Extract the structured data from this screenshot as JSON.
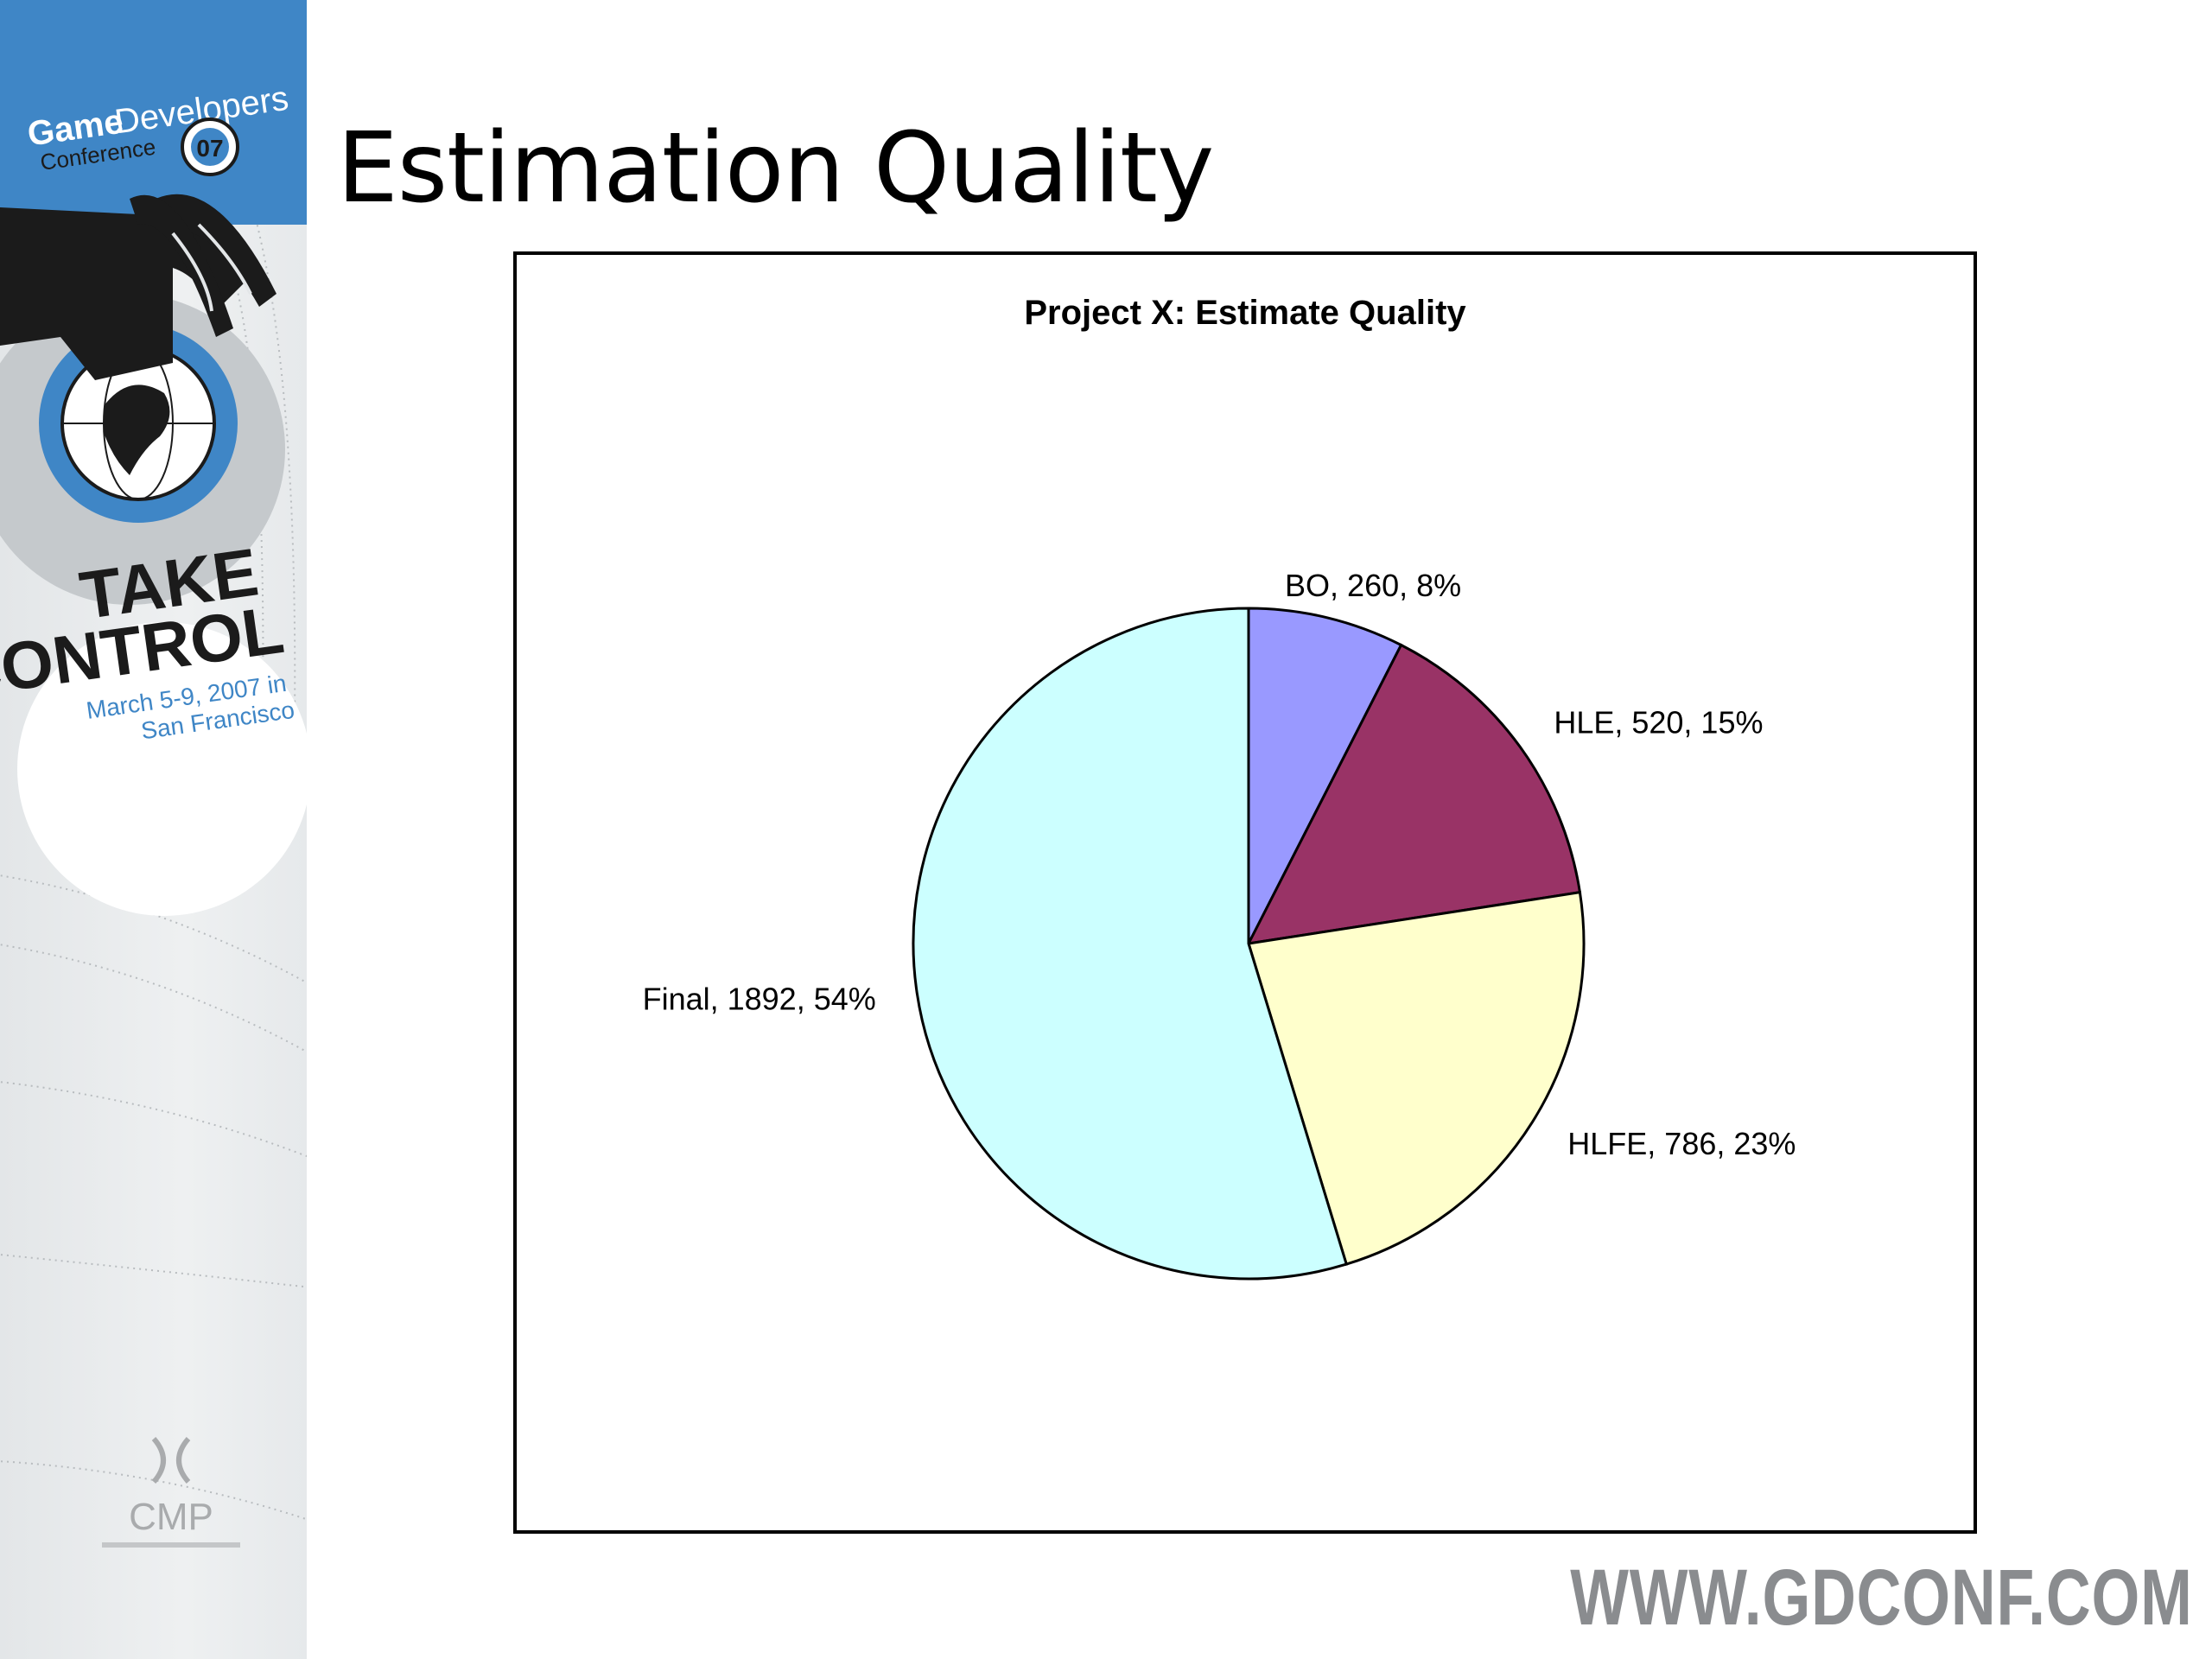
{
  "slide": {
    "title": "Estimation Quality",
    "footer_url": "WWW.GDCONF.COM"
  },
  "sidebar": {
    "logo_line1_a": "Game",
    "logo_line1_b": "Developers",
    "logo_line2": "Conference",
    "logo_badge": "07",
    "tagline_1": "TAKE",
    "tagline_2": "CONTROL",
    "date_1": "March 5-9, 2007 in",
    "date_2": "San Francisco",
    "sponsor": "CMP",
    "colors": {
      "brand_blue": "#3f86c6",
      "dark": "#1b1b1b",
      "gray": "#9a9c9e"
    }
  },
  "chart_data": {
    "type": "pie",
    "title": "Project X: Estimate Quality",
    "slices": [
      {
        "label": "BO, 260, 8%",
        "name": "BO",
        "value": 260,
        "percent": 8,
        "color": "#9999ff"
      },
      {
        "label": "HLE, 520, 15%",
        "name": "HLE",
        "value": 520,
        "percent": 15,
        "color": "#993366"
      },
      {
        "label": "HLFE, 786, 23%",
        "name": "HLFE",
        "value": 786,
        "percent": 23,
        "color": "#ffffcc"
      },
      {
        "label": "Final, 1892, 54%",
        "name": "Final",
        "value": 1892,
        "percent": 54,
        "color": "#ccffff"
      }
    ],
    "start_angle": "12 o'clock",
    "direction": "clockwise",
    "legend": "none"
  }
}
